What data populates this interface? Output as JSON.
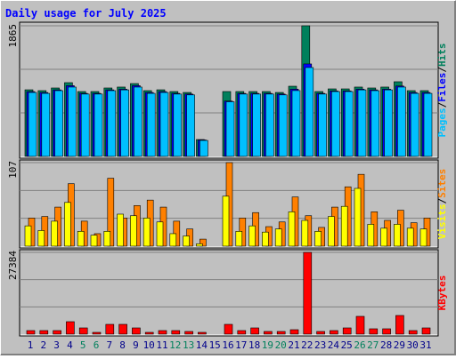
{
  "chart_data": [
    {
      "type": "bar",
      "title": "Daily usage for July 2025",
      "ylim": [
        0,
        1865
      ],
      "yticks": [
        1865
      ],
      "grid": true,
      "separator": "/",
      "series": [
        {
          "name": "Hits",
          "color": "#00805c",
          "values": [
            951,
            939,
            977,
            1053,
            926,
            926,
            977,
            990,
            1040,
            939,
            951,
            926,
            913,
            241,
            0,
            926,
            926,
            926,
            926,
            913,
            1002,
            1865,
            926,
            964,
            964,
            990,
            977,
            990,
            1066,
            939,
            939
          ]
        },
        {
          "name": "Files",
          "color": "#0000ff",
          "values": [
            925,
            912,
            950,
            1010,
            900,
            900,
            950,
            960,
            1010,
            912,
            925,
            900,
            890,
            235,
            0,
            790,
            900,
            900,
            900,
            890,
            960,
            1320,
            900,
            935,
            935,
            960,
            950,
            960,
            1005,
            912,
            912
          ]
        },
        {
          "name": "Pages",
          "color": "#00c0ff",
          "values": [
            913,
            900,
            939,
            990,
            890,
            890,
            939,
            950,
            990,
            900,
            913,
            890,
            878,
            228,
            0,
            780,
            890,
            890,
            890,
            878,
            940,
            1269,
            890,
            926,
            926,
            950,
            939,
            950,
            990,
            900,
            900
          ]
        }
      ]
    },
    {
      "type": "bar",
      "ylim": [
        0,
        107
      ],
      "yticks": [
        107
      ],
      "grid": true,
      "separator": "/",
      "series": [
        {
          "name": "Sites",
          "color": "#ff8000",
          "values": [
            36,
            38,
            50,
            80,
            32,
            16,
            87,
            36,
            52,
            59,
            50,
            32,
            22,
            9,
            0,
            107,
            36,
            43,
            25,
            31,
            63,
            39,
            24,
            50,
            76,
            92,
            44,
            33,
            46,
            30,
            36
          ]
        },
        {
          "name": "Visits",
          "color": "#ffff00",
          "values": [
            26,
            20,
            32,
            56,
            19,
            14,
            19,
            41,
            39,
            36,
            31,
            16,
            13,
            3,
            0,
            64,
            19,
            26,
            18,
            22,
            44,
            33,
            19,
            38,
            51,
            74,
            28,
            23,
            28,
            23,
            22
          ]
        }
      ]
    },
    {
      "type": "bar",
      "ylim": [
        0,
        27384
      ],
      "yticks": [
        27384
      ],
      "grid": true,
      "categories": [
        "1",
        "2",
        "3",
        "4",
        "5",
        "6",
        "7",
        "8",
        "9",
        "10",
        "11",
        "12",
        "13",
        "14",
        "15",
        "16",
        "17",
        "18",
        "19",
        "20",
        "21",
        "22",
        "23",
        "24",
        "25",
        "26",
        "27",
        "28",
        "29",
        "30",
        "31"
      ],
      "label_color": "#00008b",
      "weekend_color": "#00805c",
      "weekends": [
        "5",
        "6",
        "12",
        "13",
        "19",
        "20",
        "26",
        "27"
      ],
      "series": [
        {
          "name": "KBytes",
          "color": "#ff0000",
          "values": [
            1190,
            1190,
            1190,
            4167,
            2084,
            595,
            3274,
            3274,
            2084,
            595,
            1190,
            1190,
            893,
            595,
            0,
            3274,
            1190,
            2084,
            893,
            893,
            1488,
            27384,
            893,
            1190,
            2084,
            5953,
            1786,
            1786,
            6251,
            1190,
            2084
          ]
        }
      ]
    }
  ]
}
